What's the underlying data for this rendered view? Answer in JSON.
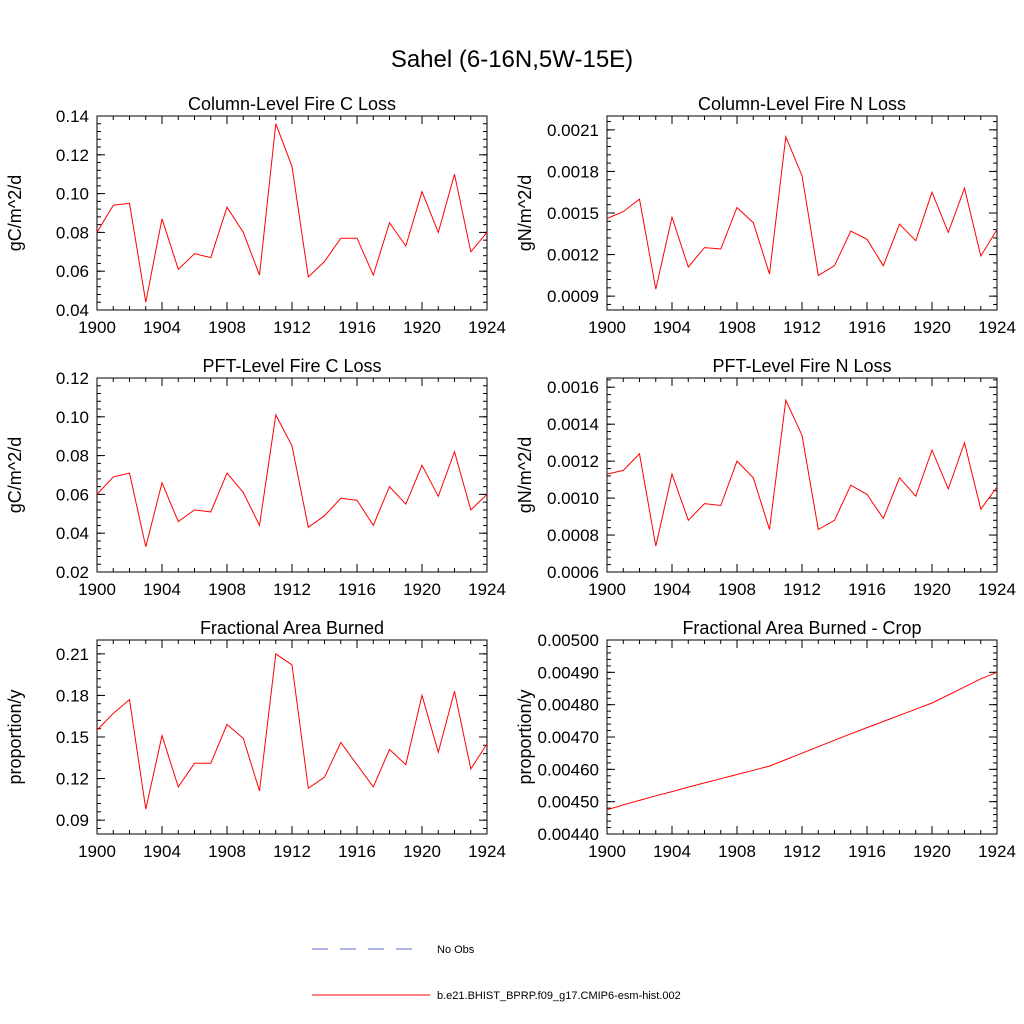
{
  "figure": {
    "title": "Sahel (6-16N,5W-15E)",
    "line_color": "#ff0000",
    "obs_color": "#5a6ec8"
  },
  "legend": {
    "obs_label": "No Obs",
    "model_label": "b.e21.BHIST_BPRP.f09_g17.CMIP6-esm-hist.002"
  },
  "chart_data": [
    {
      "type": "line",
      "title": "Column-Level Fire C Loss",
      "ylabel": "gC/m^2/d",
      "xlim": [
        1900,
        1924
      ],
      "ylim": [
        0.04,
        0.14
      ],
      "xticks": [
        "1900",
        "1904",
        "1908",
        "1912",
        "1916",
        "1920",
        "1924"
      ],
      "yticks": [
        0.04,
        0.06,
        0.08,
        0.1,
        0.12,
        0.14
      ],
      "ytick_labels": [
        "0.04",
        "0.06",
        "0.08",
        "0.10",
        "0.12",
        "0.14"
      ],
      "x": [
        1900,
        1901,
        1902,
        1903,
        1904,
        1905,
        1906,
        1907,
        1908,
        1909,
        1910,
        1911,
        1912,
        1913,
        1914,
        1915,
        1916,
        1917,
        1918,
        1919,
        1920,
        1921,
        1922,
        1923,
        1924
      ],
      "series": [
        {
          "name": "b.e21.BHIST_BPRP.f09_g17.CMIP6-esm-hist.002",
          "values": [
            0.08,
            0.094,
            0.095,
            0.044,
            0.087,
            0.061,
            0.069,
            0.067,
            0.093,
            0.08,
            0.058,
            0.136,
            0.114,
            0.057,
            0.065,
            0.077,
            0.077,
            0.058,
            0.085,
            0.073,
            0.101,
            0.08,
            0.11,
            0.07,
            0.08
          ]
        }
      ]
    },
    {
      "type": "line",
      "title": "Column-Level Fire N Loss",
      "ylabel": "gN/m^2/d",
      "xlim": [
        1900,
        1924
      ],
      "ylim": [
        0.0008,
        0.0022
      ],
      "xticks": [
        "1900",
        "1904",
        "1908",
        "1912",
        "1916",
        "1920",
        "1924"
      ],
      "yticks": [
        0.0009,
        0.0012,
        0.0015,
        0.0018,
        0.0021
      ],
      "ytick_labels": [
        "0.0009",
        "0.0012",
        "0.0015",
        "0.0018",
        "0.0021"
      ],
      "x": [
        1900,
        1901,
        1902,
        1903,
        1904,
        1905,
        1906,
        1907,
        1908,
        1909,
        1910,
        1911,
        1912,
        1913,
        1914,
        1915,
        1916,
        1917,
        1918,
        1919,
        1920,
        1921,
        1922,
        1923,
        1924
      ],
      "series": [
        {
          "name": "b.e21.BHIST_BPRP.f09_g17.CMIP6-esm-hist.002",
          "values": [
            0.00146,
            0.00151,
            0.0016,
            0.00095,
            0.00147,
            0.00111,
            0.00125,
            0.00124,
            0.00154,
            0.00143,
            0.00106,
            0.00205,
            0.00177,
            0.00105,
            0.00112,
            0.00137,
            0.00131,
            0.00112,
            0.00142,
            0.0013,
            0.00165,
            0.00136,
            0.00168,
            0.00119,
            0.00138
          ]
        }
      ]
    },
    {
      "type": "line",
      "title": "PFT-Level Fire C Loss",
      "ylabel": "gC/m^2/d",
      "xlim": [
        1900,
        1924
      ],
      "ylim": [
        0.02,
        0.12
      ],
      "xticks": [
        "1900",
        "1904",
        "1908",
        "1912",
        "1916",
        "1920",
        "1924"
      ],
      "yticks": [
        0.02,
        0.04,
        0.06,
        0.08,
        0.1,
        0.12
      ],
      "ytick_labels": [
        "0.02",
        "0.04",
        "0.06",
        "0.08",
        "0.10",
        "0.12"
      ],
      "x": [
        1900,
        1901,
        1902,
        1903,
        1904,
        1905,
        1906,
        1907,
        1908,
        1909,
        1910,
        1911,
        1912,
        1913,
        1914,
        1915,
        1916,
        1917,
        1918,
        1919,
        1920,
        1921,
        1922,
        1923,
        1924
      ],
      "series": [
        {
          "name": "b.e21.BHIST_BPRP.f09_g17.CMIP6-esm-hist.002",
          "values": [
            0.06,
            0.069,
            0.071,
            0.033,
            0.066,
            0.046,
            0.052,
            0.051,
            0.071,
            0.061,
            0.044,
            0.101,
            0.085,
            0.043,
            0.049,
            0.058,
            0.057,
            0.044,
            0.064,
            0.055,
            0.075,
            0.059,
            0.082,
            0.052,
            0.06
          ]
        }
      ]
    },
    {
      "type": "line",
      "title": "PFT-Level Fire N Loss",
      "ylabel": "gN/m^2/d",
      "xlim": [
        1900,
        1924
      ],
      "ylim": [
        0.0006,
        0.00165
      ],
      "xticks": [
        "1900",
        "1904",
        "1908",
        "1912",
        "1916",
        "1920",
        "1924"
      ],
      "yticks": [
        0.0006,
        0.0008,
        0.001,
        0.0012,
        0.0014,
        0.0016
      ],
      "ytick_labels": [
        "0.0006",
        "0.0008",
        "0.0010",
        "0.0012",
        "0.0014",
        "0.0016"
      ],
      "x": [
        1900,
        1901,
        1902,
        1903,
        1904,
        1905,
        1906,
        1907,
        1908,
        1909,
        1910,
        1911,
        1912,
        1913,
        1914,
        1915,
        1916,
        1917,
        1918,
        1919,
        1920,
        1921,
        1922,
        1923,
        1924
      ],
      "series": [
        {
          "name": "b.e21.BHIST_BPRP.f09_g17.CMIP6-esm-hist.002",
          "values": [
            0.00113,
            0.00115,
            0.00124,
            0.00074,
            0.00113,
            0.00088,
            0.00097,
            0.00096,
            0.0012,
            0.00111,
            0.00083,
            0.00153,
            0.00134,
            0.00083,
            0.00088,
            0.00107,
            0.00102,
            0.00089,
            0.00111,
            0.00101,
            0.00126,
            0.00105,
            0.0013,
            0.00094,
            0.00106
          ]
        }
      ]
    },
    {
      "type": "line",
      "title": "Fractional Area Burned",
      "ylabel": "proportion/y",
      "xlim": [
        1900,
        1924
      ],
      "ylim": [
        0.08,
        0.22
      ],
      "xticks": [
        "1900",
        "1904",
        "1908",
        "1912",
        "1916",
        "1920",
        "1924"
      ],
      "yticks": [
        0.09,
        0.12,
        0.15,
        0.18,
        0.21
      ],
      "ytick_labels": [
        "0.09",
        "0.12",
        "0.15",
        "0.18",
        "0.21"
      ],
      "x": [
        1900,
        1901,
        1902,
        1903,
        1904,
        1905,
        1906,
        1907,
        1908,
        1909,
        1910,
        1911,
        1912,
        1913,
        1914,
        1915,
        1916,
        1917,
        1918,
        1919,
        1920,
        1921,
        1922,
        1923,
        1924
      ],
      "series": [
        {
          "name": "b.e21.BHIST_BPRP.f09_g17.CMIP6-esm-hist.002",
          "values": [
            0.155,
            0.167,
            0.177,
            0.098,
            0.151,
            0.114,
            0.131,
            0.131,
            0.159,
            0.149,
            0.111,
            0.21,
            0.202,
            0.113,
            0.121,
            0.146,
            0.13,
            0.114,
            0.141,
            0.13,
            0.18,
            0.139,
            0.183,
            0.127,
            0.145
          ]
        }
      ]
    },
    {
      "type": "line",
      "title": "Fractional Area Burned - Crop",
      "ylabel": "proportion/y",
      "xlim": [
        1900,
        1924
      ],
      "ylim": [
        0.0044,
        0.005
      ],
      "xticks": [
        "1900",
        "1904",
        "1908",
        "1912",
        "1916",
        "1920",
        "1924"
      ],
      "yticks": [
        0.0044,
        0.0045,
        0.0046,
        0.0047,
        0.0048,
        0.0049,
        0.005
      ],
      "ytick_labels": [
        "0.00440",
        "0.00450",
        "0.00460",
        "0.00470",
        "0.00480",
        "0.00490",
        "0.00500"
      ],
      "x": [
        1900,
        1901,
        1902,
        1903,
        1904,
        1905,
        1906,
        1907,
        1908,
        1909,
        1910,
        1911,
        1912,
        1913,
        1914,
        1915,
        1916,
        1917,
        1918,
        1919,
        1920,
        1921,
        1922,
        1923,
        1924
      ],
      "series": [
        {
          "name": "b.e21.BHIST_BPRP.f09_g17.CMIP6-esm-hist.002",
          "values": [
            0.004475,
            0.00449,
            0.004504,
            0.004518,
            0.004531,
            0.004545,
            0.004558,
            0.004571,
            0.004584,
            0.004597,
            0.00461,
            0.00463,
            0.00465,
            0.00467,
            0.00469,
            0.00471,
            0.004729,
            0.004748,
            0.004767,
            0.004786,
            0.004805,
            0.00483,
            0.004855,
            0.00488,
            0.0049
          ]
        }
      ]
    }
  ]
}
